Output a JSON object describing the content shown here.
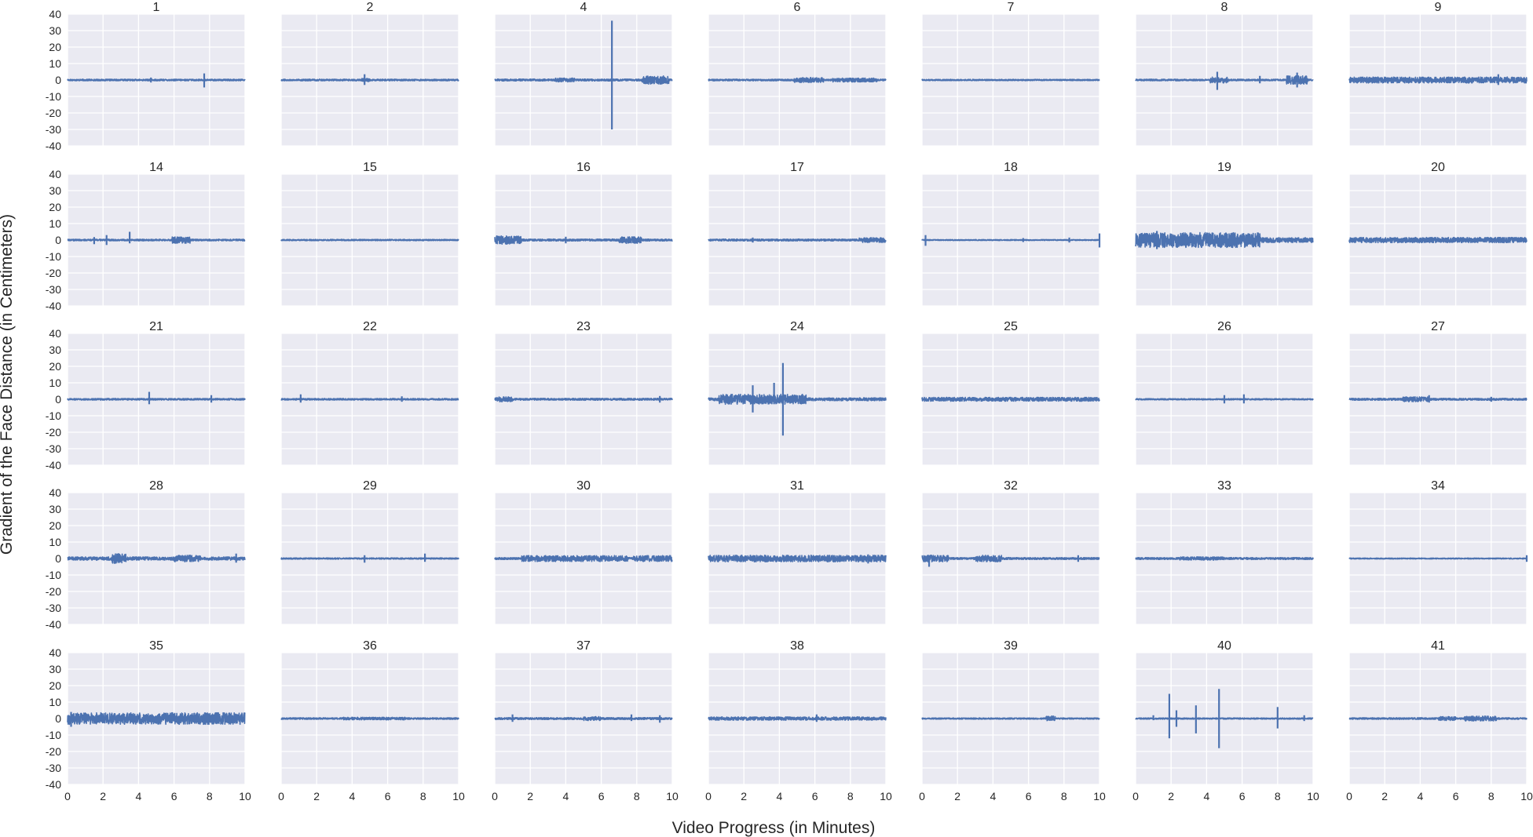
{
  "chart_data": {
    "type": "line",
    "layout": {
      "rows": 5,
      "cols": 7,
      "sharex": true,
      "sharey": true
    },
    "xlabel": "Video Progress (in Minutes)",
    "ylabel": "Gradient of the Face Distance (in Centimeters)",
    "xlim": [
      0,
      10
    ],
    "ylim": [
      -40,
      40
    ],
    "xticks": [
      0,
      2,
      4,
      6,
      8,
      10
    ],
    "yticks": [
      40,
      30,
      20,
      10,
      0,
      -10,
      -20,
      -30,
      -40
    ],
    "grid": true,
    "line_color": "#4c72b0",
    "background": "#eaeaf2",
    "panels": [
      {
        "title": "1",
        "noise": 0.5,
        "bursts": [],
        "spikes": [
          [
            7.7,
            4,
            -4.5
          ],
          [
            4.7,
            1.5,
            -1.5
          ]
        ]
      },
      {
        "title": "2",
        "noise": 0.5,
        "bursts": [
          [
            4.5,
            5.0,
            1.0
          ]
        ],
        "spikes": [
          [
            4.7,
            3.5,
            -3
          ]
        ]
      },
      {
        "title": "4",
        "noise": 0.6,
        "bursts": [
          [
            8.3,
            9.8,
            2.5
          ],
          [
            3.4,
            4.5,
            1.2
          ]
        ],
        "spikes": [
          [
            6.6,
            36,
            -30
          ]
        ]
      },
      {
        "title": "6",
        "noise": 0.5,
        "bursts": [
          [
            4.8,
            6.5,
            1.5
          ],
          [
            7.0,
            9.5,
            1.2
          ]
        ],
        "spikes": []
      },
      {
        "title": "7",
        "noise": 0.4,
        "bursts": [],
        "spikes": []
      },
      {
        "title": "8",
        "noise": 0.5,
        "bursts": [
          [
            4.2,
            5.2,
            1.8
          ],
          [
            8.5,
            9.7,
            2.5
          ]
        ],
        "spikes": [
          [
            4.6,
            5,
            -6
          ],
          [
            9.1,
            4.5,
            -4.5
          ],
          [
            7.0,
            2.5,
            -2
          ]
        ]
      },
      {
        "title": "9",
        "noise": 1.0,
        "bursts": [
          [
            0,
            10,
            1.8
          ]
        ],
        "spikes": [
          [
            8.4,
            3.5,
            -3
          ]
        ]
      },
      {
        "title": "14",
        "noise": 0.5,
        "bursts": [
          [
            5.9,
            6.9,
            2.0
          ]
        ],
        "spikes": [
          [
            3.5,
            5,
            -2
          ],
          [
            2.2,
            3,
            -3
          ],
          [
            1.5,
            1.8,
            -2.5
          ]
        ]
      },
      {
        "title": "15",
        "noise": 0.4,
        "bursts": [],
        "spikes": []
      },
      {
        "title": "16",
        "noise": 0.6,
        "bursts": [
          [
            0,
            1.5,
            2.5
          ],
          [
            7.0,
            8.3,
            2.0
          ]
        ],
        "spikes": [
          [
            4.0,
            2,
            -2
          ]
        ]
      },
      {
        "title": "17",
        "noise": 0.6,
        "bursts": [
          [
            8.5,
            10,
            1.5
          ]
        ],
        "spikes": [
          [
            2.5,
            1.5,
            -1.5
          ]
        ]
      },
      {
        "title": "18",
        "noise": 0.3,
        "bursts": [],
        "spikes": [
          [
            0.2,
            3,
            -3.5
          ],
          [
            10.0,
            4,
            -4.5
          ],
          [
            5.7,
            1.2,
            -1.2
          ],
          [
            8.3,
            1.5,
            -1.5
          ]
        ]
      },
      {
        "title": "19",
        "noise": 1.5,
        "bursts": [
          [
            0,
            7.0,
            4.5
          ]
        ],
        "spikes": [
          [
            1.2,
            5.5,
            -5.5
          ]
        ]
      },
      {
        "title": "20",
        "noise": 1.0,
        "bursts": [
          [
            0,
            10,
            1.6
          ]
        ],
        "spikes": []
      },
      {
        "title": "21",
        "noise": 0.5,
        "bursts": [],
        "spikes": [
          [
            4.6,
            4.5,
            -3
          ],
          [
            8.1,
            2.5,
            -2
          ]
        ]
      },
      {
        "title": "22",
        "noise": 0.5,
        "bursts": [],
        "spikes": [
          [
            1.1,
            3,
            -2
          ],
          [
            6.8,
            1.8,
            -1.5
          ]
        ]
      },
      {
        "title": "23",
        "noise": 0.6,
        "bursts": [
          [
            0,
            1.0,
            1.5
          ]
        ],
        "spikes": [
          [
            9.3,
            2,
            -2
          ]
        ]
      },
      {
        "title": "24",
        "noise": 0.9,
        "bursts": [
          [
            0.6,
            5.5,
            3.0
          ]
        ],
        "spikes": [
          [
            4.2,
            22,
            -22
          ],
          [
            2.5,
            8.5,
            -8
          ],
          [
            3.7,
            10,
            -3
          ]
        ]
      },
      {
        "title": "25",
        "noise": 0.7,
        "bursts": [
          [
            0,
            10,
            1.2
          ]
        ],
        "spikes": []
      },
      {
        "title": "26",
        "noise": 0.4,
        "bursts": [],
        "spikes": [
          [
            5.0,
            2.5,
            -2.5
          ],
          [
            6.1,
            3,
            -2.5
          ]
        ]
      },
      {
        "title": "27",
        "noise": 0.6,
        "bursts": [
          [
            3.0,
            4.5,
            1.5
          ]
        ],
        "spikes": [
          [
            4.5,
            2.5,
            -2
          ],
          [
            8.0,
            1.5,
            -1.5
          ]
        ]
      },
      {
        "title": "28",
        "noise": 1.0,
        "bursts": [
          [
            2.5,
            3.3,
            3.0
          ],
          [
            6.0,
            7.5,
            2.0
          ]
        ],
        "spikes": [
          [
            9.5,
            3,
            -2.5
          ]
        ]
      },
      {
        "title": "29",
        "noise": 0.4,
        "bursts": [],
        "spikes": [
          [
            4.7,
            2,
            -2.5
          ],
          [
            8.1,
            3,
            -2
          ]
        ]
      },
      {
        "title": "30",
        "noise": 0.6,
        "bursts": [
          [
            1.5,
            5.0,
            1.8
          ],
          [
            5.0,
            7.5,
            1.8
          ],
          [
            7.8,
            10,
            1.8
          ]
        ],
        "spikes": []
      },
      {
        "title": "31",
        "noise": 1.0,
        "bursts": [
          [
            0,
            10,
            2.0
          ]
        ],
        "spikes": [
          [
            9.0,
            2.5,
            -3
          ]
        ]
      },
      {
        "title": "32",
        "noise": 0.6,
        "bursts": [
          [
            0,
            1.5,
            2.0
          ],
          [
            3.0,
            4.5,
            2.0
          ]
        ],
        "spikes": [
          [
            0.4,
            2,
            -5
          ],
          [
            8.8,
            2,
            -2
          ]
        ]
      },
      {
        "title": "33",
        "noise": 0.6,
        "bursts": [
          [
            2.5,
            5.0,
            1.0
          ]
        ],
        "spikes": []
      },
      {
        "title": "34",
        "noise": 0.3,
        "bursts": [],
        "spikes": [
          [
            10.0,
            2,
            -2
          ]
        ]
      },
      {
        "title": "35",
        "noise": 1.5,
        "bursts": [
          [
            0,
            10,
            3.5
          ]
        ],
        "spikes": [
          [
            0.2,
            4,
            -5
          ]
        ]
      },
      {
        "title": "36",
        "noise": 0.5,
        "bursts": [
          [
            3.5,
            7.0,
            0.8
          ]
        ],
        "spikes": []
      },
      {
        "title": "37",
        "noise": 0.6,
        "bursts": [
          [
            5.0,
            6.0,
            1.2
          ]
        ],
        "spikes": [
          [
            1.0,
            2.5,
            -2
          ],
          [
            7.7,
            2.5,
            -1.5
          ],
          [
            9.3,
            2,
            -2.5
          ]
        ]
      },
      {
        "title": "38",
        "noise": 0.7,
        "bursts": [
          [
            0,
            10,
            1.0
          ]
        ],
        "spikes": [
          [
            6.1,
            2.5,
            -2
          ]
        ]
      },
      {
        "title": "39",
        "noise": 0.4,
        "bursts": [
          [
            7.0,
            7.5,
            1.5
          ]
        ],
        "spikes": []
      },
      {
        "title": "40",
        "noise": 0.4,
        "bursts": [],
        "spikes": [
          [
            1.9,
            15,
            -12
          ],
          [
            2.3,
            5,
            -5
          ],
          [
            3.4,
            8,
            -9
          ],
          [
            4.7,
            18,
            -18
          ],
          [
            8.0,
            7,
            -6
          ],
          [
            1.0,
            2,
            -1
          ],
          [
            9.5,
            2,
            -1.5
          ]
        ]
      },
      {
        "title": "41",
        "noise": 0.5,
        "bursts": [
          [
            5.0,
            6.0,
            1.2
          ],
          [
            6.5,
            8.3,
            1.5
          ]
        ],
        "spikes": []
      }
    ]
  }
}
